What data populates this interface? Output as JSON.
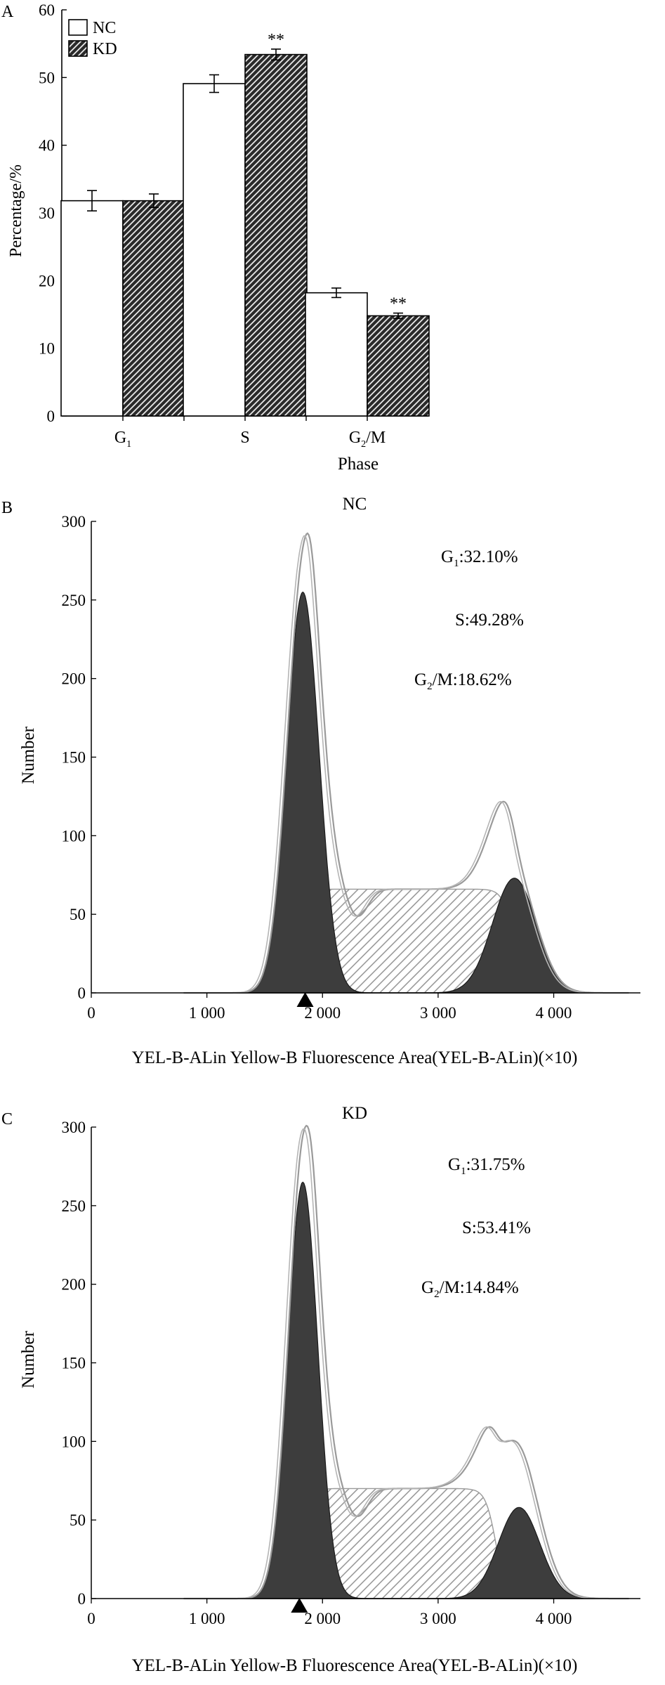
{
  "colors": {
    "ink": "#000000",
    "dark_fill": "#3d3d3d",
    "outline_gray": "#9a9a9a",
    "hatch_gray": "#8c8c8c",
    "background": "#ffffff"
  },
  "panel_a": {
    "label": "A",
    "chart_data": {
      "type": "bar",
      "categories": [
        "G₁",
        "S",
        "G₂/M"
      ],
      "series": [
        {
          "name": "NC",
          "values": [
            31.8,
            49.1,
            18.2
          ],
          "errors": [
            1.5,
            1.3,
            0.7
          ],
          "pattern": "open"
        },
        {
          "name": "KD",
          "values": [
            31.8,
            53.4,
            14.8
          ],
          "errors": [
            1.0,
            0.8,
            0.4
          ],
          "pattern": "hatched"
        }
      ],
      "significance": [
        {
          "series": "KD",
          "category": "S",
          "mark": "**"
        },
        {
          "series": "KD",
          "category": "G₂/M",
          "mark": "**"
        }
      ],
      "xlabel": "Phase",
      "ylabel": "Percentage/%",
      "ylim": [
        0,
        60
      ],
      "yticks": [
        0,
        10,
        20,
        30,
        40,
        50,
        60
      ],
      "legend": "top-left",
      "grid": false
    }
  },
  "panel_b": {
    "label": "B",
    "chart_data": {
      "type": "area",
      "title": "NC",
      "xlabel": "YEL-B-ALin Yellow-B Fluorescence Area(YEL-B-ALin)(×10)",
      "ylabel": "Number",
      "xlim": [
        0,
        4750
      ],
      "ylim": [
        0,
        300
      ],
      "xticks": [
        0,
        1000,
        2000,
        3000,
        4000
      ],
      "xtick_labels": [
        "0",
        "1 000",
        "2 000",
        "3 000",
        "4 000"
      ],
      "yticks": [
        0,
        50,
        100,
        150,
        200,
        250,
        300
      ],
      "marker_x": 1850,
      "annotations": [
        {
          "sub": "1",
          "prefix": "G",
          "suffix": ":32.10%"
        },
        {
          "sub": "",
          "prefix": "S",
          "suffix": ":49.28%"
        },
        {
          "sub": "2",
          "prefix": "G",
          "suffix": "/M:18.62%"
        }
      ],
      "components": {
        "G1": {
          "center": 1830,
          "height": 255,
          "sigma": 140
        },
        "S_plateau": {
          "start": 1870,
          "end": 3650,
          "height": 66,
          "rise": 120,
          "fall": 180
        },
        "G2M": {
          "center": 3660,
          "height": 73,
          "sigma": 190
        }
      },
      "overall_peak": {
        "x": 1850,
        "y": 290
      },
      "second_peak": {
        "x": 3580,
        "y": 110
      }
    }
  },
  "panel_c": {
    "label": "C",
    "chart_data": {
      "type": "area",
      "title": "KD",
      "xlabel": "YEL-B-ALin Yellow-B Fluorescence Area(YEL-B-ALin)(×10)",
      "ylabel": "Number",
      "xlim": [
        0,
        4750
      ],
      "ylim": [
        0,
        300
      ],
      "xticks": [
        0,
        1000,
        2000,
        3000,
        4000
      ],
      "xtick_labels": [
        "0",
        "1 000",
        "2 000",
        "3 000",
        "4 000"
      ],
      "yticks": [
        0,
        50,
        100,
        150,
        200,
        250,
        300
      ],
      "marker_x": 1800,
      "annotations": [
        {
          "sub": "1",
          "prefix": "G",
          "suffix": ":31.75%"
        },
        {
          "sub": "",
          "prefix": "S",
          "suffix": ":53.41%"
        },
        {
          "sub": "2",
          "prefix": "G",
          "suffix": "/M:14.84%"
        }
      ],
      "components": {
        "G1": {
          "center": 1830,
          "height": 265,
          "sigma": 130
        },
        "S_plateau": {
          "start": 1880,
          "end": 3500,
          "height": 70,
          "rise": 120,
          "fall": 180
        },
        "G2M": {
          "center": 3700,
          "height": 58,
          "sigma": 180
        }
      },
      "overall_peak": {
        "x": 1850,
        "y": 300
      },
      "second_peak": {
        "x": 3600,
        "y": 100
      }
    }
  }
}
